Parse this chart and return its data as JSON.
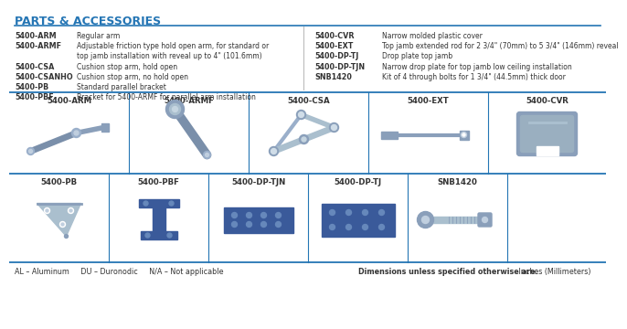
{
  "title": "PARTS & ACCESSORIES",
  "title_color": "#2475b4",
  "bg_color": "#ffffff",
  "border_color": "#2475b4",
  "text_color": "#333333",
  "steel_color": "#8899bb",
  "steel_light": "#aabbcc",
  "plate_blue": "#3a5a9a",
  "left_items": [
    [
      "5400-ARM",
      "Regular arm",
      false
    ],
    [
      "5400-ARMF",
      "Adjustable friction type hold open arm, for standard or",
      true
    ],
    [
      "",
      "top jamb installation with reveal up to 4\" (101.6mm)",
      false
    ],
    [
      "5400-CSA",
      "Cushion stop arm, hold open",
      false
    ],
    [
      "5400-CSANHO",
      "Cushion stop arm, no hold open",
      false
    ],
    [
      "5400-PB",
      "Standard parallel bracket",
      false
    ],
    [
      "5400-PBF",
      "Bracket for 5400-ARMF for parallel arm installation",
      false
    ]
  ],
  "right_items": [
    [
      "5400-CVR",
      "Narrow molded plastic cover"
    ],
    [
      "5400-EXT",
      "Top jamb extended rod for 2 3/4\" (70mm) to 5 3/4\" (146mm) reveal"
    ],
    [
      "5400-DP-TJ",
      "Drop plate top jamb"
    ],
    [
      "5400-DP-TJN",
      "Narrow drop plate for top jamb low ceiling installation"
    ],
    [
      "SNB1420",
      "Kit of 4 through bolts for 1 3/4\" (44.5mm) thick door"
    ]
  ],
  "row1_labels": [
    "5400-ARM",
    "5400-ARMF",
    "5400-CSA",
    "5400-EXT",
    "5400-CVR"
  ],
  "row2_labels": [
    "5400-PB",
    "5400-PBF",
    "5400-DP-TJN",
    "5400-DP-TJ",
    "SNB1420"
  ],
  "footer_left": "AL – Aluminum     DU – Duronodic     N/A – Not applicable",
  "footer_right_bold": "Dimensions unless specified otherwise are:",
  "footer_right_normal": " Inches (Millimeters)"
}
